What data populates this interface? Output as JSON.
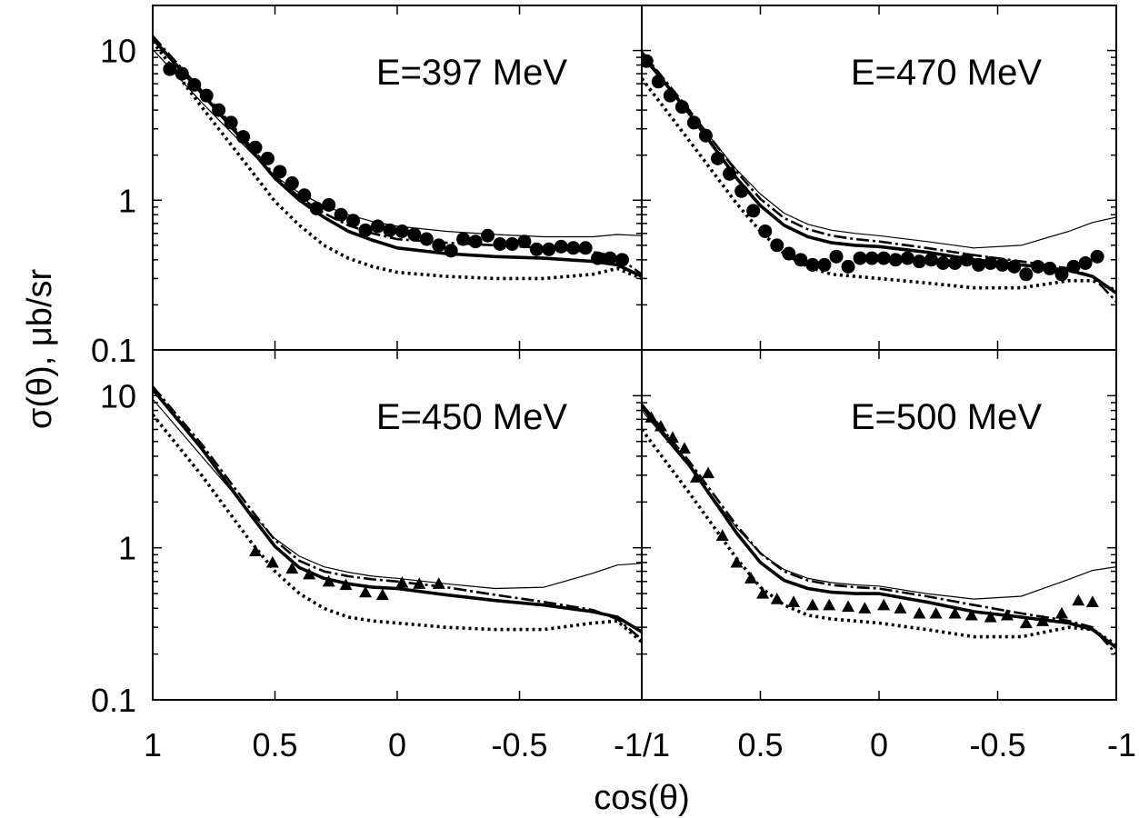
{
  "figure": {
    "ylabel": "σ(θ), μb/sr",
    "xlabel": "cos(θ)",
    "y_tick_labels": [
      "10",
      "1",
      "0.1"
    ],
    "x_tick_labels_left": [
      "1",
      "0.5",
      "0",
      "-0.5"
    ],
    "x_tick_labels_right": [
      "0.5",
      "0",
      "-0.5",
      "-1"
    ],
    "x_shared_boundary_label": "-1/1"
  },
  "chart_data": [
    {
      "type": "line",
      "panel": "top-left",
      "annotation": "E=397 MeV",
      "x_axis": {
        "label": "cos(θ)",
        "range": [
          1,
          -1
        ]
      },
      "y_axis": {
        "label": "σ(θ), μb/sr",
        "range": [
          0.1,
          20
        ],
        "scale": "log"
      },
      "marker": "circle",
      "points": {
        "x": [
          0.93,
          0.88,
          0.83,
          0.78,
          0.73,
          0.68,
          0.63,
          0.58,
          0.53,
          0.48,
          0.43,
          0.38,
          0.33,
          0.28,
          0.23,
          0.18,
          0.13,
          0.08,
          0.03,
          -0.02,
          -0.07,
          -0.12,
          -0.17,
          -0.22,
          -0.27,
          -0.32,
          -0.37,
          -0.42,
          -0.47,
          -0.52,
          -0.57,
          -0.62,
          -0.67,
          -0.72,
          -0.77,
          -0.82,
          -0.87,
          -0.92
        ],
        "y": [
          7.5,
          7.0,
          5.9,
          5.0,
          4.0,
          3.3,
          2.65,
          2.25,
          1.9,
          1.55,
          1.3,
          1.08,
          0.88,
          0.93,
          0.8,
          0.73,
          0.63,
          0.67,
          0.63,
          0.62,
          0.59,
          0.55,
          0.5,
          0.46,
          0.55,
          0.53,
          0.58,
          0.51,
          0.51,
          0.53,
          0.47,
          0.47,
          0.49,
          0.48,
          0.48,
          0.41,
          0.41,
          0.4
        ]
      },
      "curves": {
        "x": [
          1,
          0.8,
          0.6,
          0.5,
          0.4,
          0.3,
          0.2,
          0.1,
          0,
          -0.2,
          -0.4,
          -0.6,
          -0.8,
          -0.9,
          -1
        ],
        "thick_solid": [
          12.0,
          5.2,
          2.2,
          1.4,
          1.0,
          0.77,
          0.62,
          0.54,
          0.48,
          0.44,
          0.42,
          0.41,
          0.39,
          0.37,
          0.31
        ],
        "dash_dot": [
          12.5,
          5.4,
          2.3,
          1.45,
          1.05,
          0.82,
          0.68,
          0.6,
          0.55,
          0.52,
          0.5,
          0.48,
          0.45,
          0.42,
          0.32
        ],
        "thin_solid": [
          10.2,
          4.5,
          2.1,
          1.45,
          1.12,
          0.92,
          0.8,
          0.72,
          0.67,
          0.62,
          0.59,
          0.57,
          0.57,
          0.59,
          0.58
        ],
        "dotted": [
          11.5,
          4.2,
          1.6,
          0.98,
          0.68,
          0.5,
          0.41,
          0.36,
          0.33,
          0.31,
          0.3,
          0.3,
          0.32,
          0.35,
          0.3
        ]
      }
    },
    {
      "type": "line",
      "panel": "top-right",
      "annotation": "E=470 MeV",
      "x_axis": {
        "label": "cos(θ)",
        "range": [
          1,
          -1
        ]
      },
      "y_axis": {
        "label": "σ(θ), μb/sr",
        "range": [
          0.1,
          20
        ],
        "scale": "log"
      },
      "marker": "circle",
      "points": {
        "x": [
          0.98,
          0.93,
          0.88,
          0.83,
          0.78,
          0.73,
          0.68,
          0.63,
          0.58,
          0.53,
          0.48,
          0.43,
          0.38,
          0.33,
          0.28,
          0.23,
          0.18,
          0.13,
          0.08,
          0.03,
          -0.02,
          -0.07,
          -0.12,
          -0.17,
          -0.22,
          -0.27,
          -0.32,
          -0.37,
          -0.42,
          -0.47,
          -0.52,
          -0.57,
          -0.62,
          -0.67,
          -0.72,
          -0.77,
          -0.82,
          -0.87,
          -0.92
        ],
        "y": [
          8.5,
          6.2,
          5.0,
          4.2,
          3.3,
          2.7,
          1.9,
          1.5,
          1.15,
          0.85,
          0.62,
          0.5,
          0.44,
          0.4,
          0.37,
          0.37,
          0.42,
          0.36,
          0.41,
          0.41,
          0.41,
          0.4,
          0.41,
          0.39,
          0.4,
          0.38,
          0.38,
          0.4,
          0.37,
          0.38,
          0.37,
          0.36,
          0.32,
          0.36,
          0.35,
          0.32,
          0.36,
          0.38,
          0.42
        ]
      },
      "curves": {
        "x": [
          1,
          0.8,
          0.6,
          0.5,
          0.4,
          0.3,
          0.2,
          0.1,
          0,
          -0.2,
          -0.4,
          -0.6,
          -0.8,
          -0.9,
          -1
        ],
        "thick_solid": [
          9.5,
          3.8,
          1.4,
          0.92,
          0.68,
          0.57,
          0.52,
          0.5,
          0.49,
          0.45,
          0.4,
          0.37,
          0.34,
          0.31,
          0.24
        ],
        "dash_dot": [
          9.8,
          4.0,
          1.55,
          1.02,
          0.76,
          0.64,
          0.58,
          0.55,
          0.53,
          0.48,
          0.43,
          0.39,
          0.35,
          0.31,
          0.21
        ],
        "thin_solid": [
          9.0,
          3.9,
          1.6,
          1.1,
          0.82,
          0.69,
          0.63,
          0.6,
          0.58,
          0.53,
          0.48,
          0.5,
          0.62,
          0.71,
          0.77
        ],
        "dotted": [
          6.5,
          2.5,
          0.95,
          0.62,
          0.44,
          0.36,
          0.32,
          0.31,
          0.3,
          0.28,
          0.26,
          0.26,
          0.29,
          0.29,
          0.25
        ]
      }
    },
    {
      "type": "line",
      "panel": "bottom-left",
      "annotation": "E=450 MeV",
      "x_axis": {
        "label": "cos(θ)",
        "range": [
          1,
          -1
        ]
      },
      "y_axis": {
        "label": "σ(θ), μb/sr",
        "range": [
          0.1,
          20
        ],
        "scale": "log"
      },
      "marker": "triangle",
      "points": {
        "x": [
          0.58,
          0.51,
          0.43,
          0.36,
          0.28,
          0.21,
          0.13,
          0.06,
          -0.02,
          -0.09,
          -0.17
        ],
        "y": [
          0.95,
          0.8,
          0.73,
          0.67,
          0.6,
          0.57,
          0.51,
          0.49,
          0.59,
          0.58,
          0.58
        ]
      },
      "curves": {
        "x": [
          1,
          0.8,
          0.6,
          0.5,
          0.4,
          0.3,
          0.2,
          0.1,
          0,
          -0.2,
          -0.4,
          -0.6,
          -0.8,
          -0.9,
          -1
        ],
        "thick_solid": [
          11.0,
          4.5,
          1.65,
          1.02,
          0.74,
          0.63,
          0.58,
          0.55,
          0.54,
          0.49,
          0.45,
          0.42,
          0.38,
          0.35,
          0.28
        ],
        "dash_dot": [
          11.5,
          4.8,
          1.8,
          1.12,
          0.82,
          0.7,
          0.65,
          0.62,
          0.6,
          0.55,
          0.49,
          0.44,
          0.39,
          0.34,
          0.25
        ],
        "thin_solid": [
          9.5,
          4.0,
          1.7,
          1.15,
          0.88,
          0.75,
          0.69,
          0.65,
          0.63,
          0.58,
          0.54,
          0.55,
          0.68,
          0.77,
          0.79
        ],
        "dotted": [
          7.5,
          3.0,
          1.1,
          0.7,
          0.5,
          0.4,
          0.35,
          0.33,
          0.32,
          0.3,
          0.29,
          0.29,
          0.32,
          0.33,
          0.24
        ]
      }
    },
    {
      "type": "line",
      "panel": "bottom-right",
      "annotation": "E=500 MeV",
      "x_axis": {
        "label": "cos(θ)",
        "range": [
          1,
          -1
        ]
      },
      "y_axis": {
        "label": "σ(θ), μb/sr",
        "range": [
          0.1,
          20
        ],
        "scale": "log"
      },
      "marker": "triangle",
      "points": {
        "x": [
          0.96,
          0.92,
          0.87,
          0.82,
          0.77,
          0.72,
          0.66,
          0.6,
          0.54,
          0.49,
          0.43,
          0.36,
          0.28,
          0.21,
          0.13,
          0.06,
          -0.02,
          -0.09,
          -0.17,
          -0.24,
          -0.32,
          -0.39,
          -0.47,
          -0.54,
          -0.62,
          -0.69,
          -0.77,
          -0.84,
          -0.9
        ],
        "y": [
          7.2,
          6.3,
          5.3,
          4.5,
          2.9,
          3.1,
          1.2,
          0.8,
          0.63,
          0.5,
          0.46,
          0.44,
          0.42,
          0.42,
          0.41,
          0.4,
          0.42,
          0.4,
          0.37,
          0.37,
          0.37,
          0.36,
          0.35,
          0.36,
          0.32,
          0.33,
          0.37,
          0.45,
          0.44
        ]
      },
      "curves": {
        "x": [
          1,
          0.8,
          0.6,
          0.5,
          0.4,
          0.3,
          0.2,
          0.1,
          0,
          -0.2,
          -0.4,
          -0.6,
          -0.8,
          -0.9,
          -1
        ],
        "thick_solid": [
          8.5,
          3.5,
          1.25,
          0.8,
          0.61,
          0.54,
          0.51,
          0.5,
          0.5,
          0.44,
          0.38,
          0.35,
          0.32,
          0.29,
          0.22
        ],
        "dash_dot": [
          8.8,
          3.7,
          1.4,
          0.92,
          0.7,
          0.61,
          0.57,
          0.55,
          0.54,
          0.48,
          0.42,
          0.37,
          0.33,
          0.3,
          0.2
        ],
        "thin_solid": [
          8.0,
          3.4,
          1.35,
          0.92,
          0.72,
          0.63,
          0.59,
          0.57,
          0.56,
          0.5,
          0.46,
          0.48,
          0.62,
          0.71,
          0.75
        ],
        "dotted": [
          6.0,
          2.3,
          0.85,
          0.55,
          0.42,
          0.36,
          0.34,
          0.33,
          0.32,
          0.29,
          0.26,
          0.26,
          0.3,
          0.29,
          0.23
        ]
      }
    }
  ]
}
